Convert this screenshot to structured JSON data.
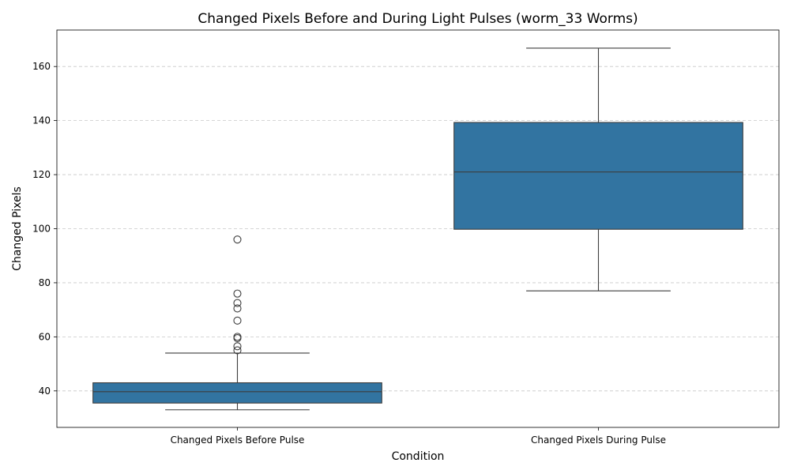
{
  "chart_data": {
    "type": "box",
    "title": "Changed Pixels Before and During Light Pulses (worm_33 Worms)",
    "xlabel": "Condition",
    "ylabel": "Changed Pixels",
    "ylim": [
      26.5,
      173.5
    ],
    "yticks": [
      40,
      60,
      80,
      100,
      120,
      140,
      160
    ],
    "grid": "y-dashed",
    "box_color": "#3274a1",
    "categories": [
      "Changed Pixels Before Pulse",
      "Changed Pixels During Pulse"
    ],
    "boxes": [
      {
        "category": "Changed Pixels Before Pulse",
        "whisker_low": 33,
        "q1": 35.5,
        "median": 39.7,
        "q3": 43,
        "whisker_high": 54,
        "outliers": [
          55,
          56.5,
          59.5,
          60,
          66,
          70.5,
          72.5,
          76,
          96
        ]
      },
      {
        "category": "Changed Pixels During Pulse",
        "whisker_low": 77,
        "q1": 99.8,
        "median": 121,
        "q3": 139.3,
        "whisker_high": 166.8,
        "outliers": []
      }
    ]
  }
}
